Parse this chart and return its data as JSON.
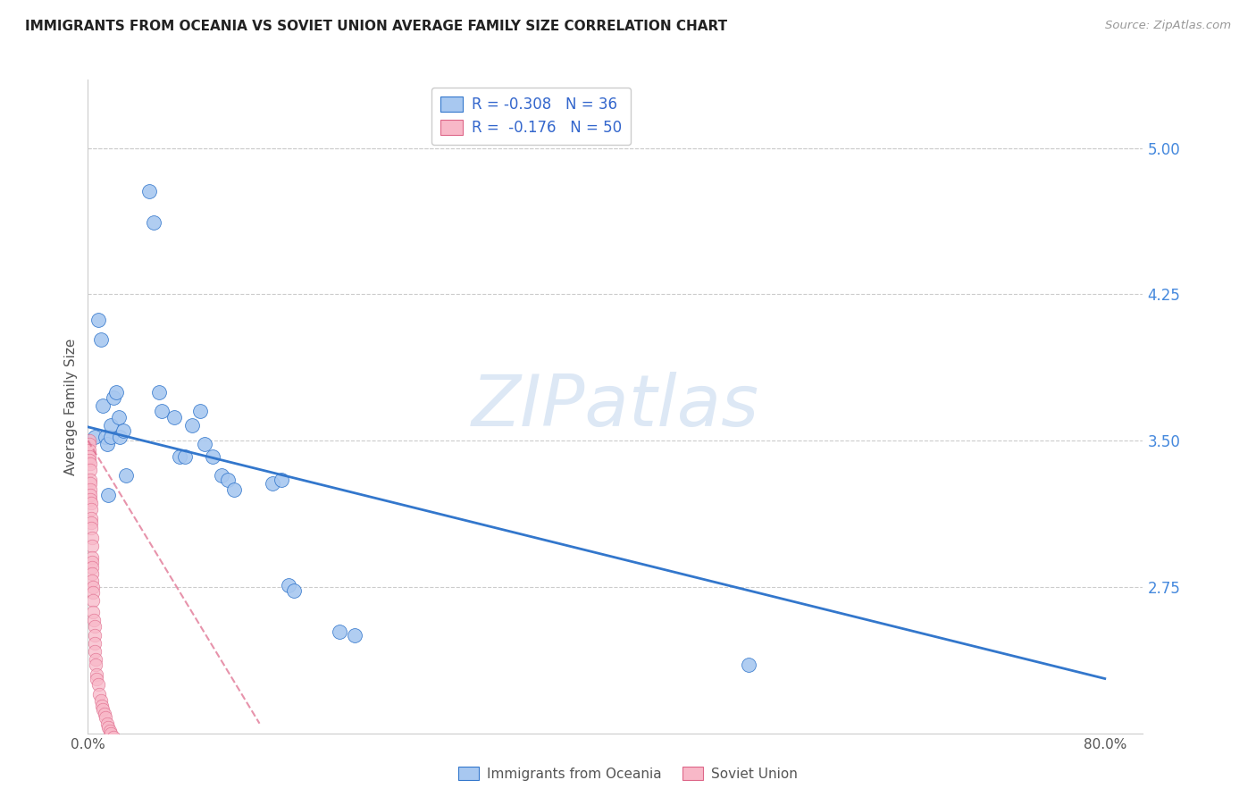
{
  "title": "IMMIGRANTS FROM OCEANIA VS SOVIET UNION AVERAGE FAMILY SIZE CORRELATION CHART",
  "source": "Source: ZipAtlas.com",
  "ylabel": "Average Family Size",
  "right_yticks": [
    2.75,
    3.5,
    4.25,
    5.0
  ],
  "ylim": [
    2.0,
    5.35
  ],
  "xlim": [
    0.0,
    0.83
  ],
  "xtick_positions": [
    0.0,
    0.1,
    0.2,
    0.3,
    0.4,
    0.5,
    0.6,
    0.7,
    0.8
  ],
  "xtick_labels": [
    "0.0%",
    "",
    "",
    "",
    "",
    "",
    "",
    "",
    "80.0%"
  ],
  "oceania_color": "#a8c8f0",
  "soviet_color": "#f8b8c8",
  "line_blue": "#3377cc",
  "line_pink": "#dd6688",
  "oceania_x": [
    0.005,
    0.008,
    0.01,
    0.012,
    0.014,
    0.015,
    0.016,
    0.018,
    0.018,
    0.02,
    0.022,
    0.024,
    0.025,
    0.028,
    0.03,
    0.048,
    0.052,
    0.056,
    0.058,
    0.068,
    0.072,
    0.076,
    0.082,
    0.088,
    0.092,
    0.098,
    0.105,
    0.11,
    0.115,
    0.145,
    0.152,
    0.158,
    0.162,
    0.198,
    0.21,
    0.52
  ],
  "oceania_y": [
    3.52,
    4.12,
    4.02,
    3.68,
    3.52,
    3.48,
    3.22,
    3.52,
    3.58,
    3.72,
    3.75,
    3.62,
    3.52,
    3.55,
    3.32,
    4.78,
    4.62,
    3.75,
    3.65,
    3.62,
    3.42,
    3.42,
    3.58,
    3.65,
    3.48,
    3.42,
    3.32,
    3.3,
    3.25,
    3.28,
    3.3,
    2.76,
    2.73,
    2.52,
    2.5,
    2.35
  ],
  "soviet_x": [
    0.0008,
    0.001,
    0.0012,
    0.0013,
    0.0014,
    0.0015,
    0.0016,
    0.0016,
    0.0018,
    0.002,
    0.002,
    0.002,
    0.0022,
    0.0023,
    0.0025,
    0.0025,
    0.0027,
    0.003,
    0.003,
    0.003,
    0.003,
    0.0032,
    0.0033,
    0.0035,
    0.0038,
    0.004,
    0.004,
    0.0042,
    0.0045,
    0.005,
    0.005,
    0.0052,
    0.0055,
    0.006,
    0.006,
    0.007,
    0.007,
    0.008,
    0.009,
    0.01,
    0.011,
    0.012,
    0.013,
    0.014,
    0.015,
    0.016,
    0.017,
    0.018,
    0.02,
    0.022
  ],
  "soviet_y": [
    3.5,
    3.48,
    3.45,
    3.42,
    3.4,
    3.38,
    3.35,
    3.3,
    3.28,
    3.25,
    3.22,
    3.2,
    3.18,
    3.15,
    3.1,
    3.08,
    3.05,
    3.0,
    2.96,
    2.9,
    2.88,
    2.85,
    2.82,
    2.78,
    2.75,
    2.72,
    2.68,
    2.62,
    2.58,
    2.55,
    2.5,
    2.46,
    2.42,
    2.38,
    2.35,
    2.3,
    2.28,
    2.25,
    2.2,
    2.17,
    2.14,
    2.12,
    2.1,
    2.08,
    2.05,
    2.03,
    2.01,
    2.0,
    1.98,
    1.95
  ],
  "blue_line_x": [
    0.0,
    0.8
  ],
  "blue_line_y": [
    3.57,
    2.28
  ],
  "pink_line_x": [
    0.0,
    0.135
  ],
  "pink_line_y": [
    3.5,
    2.05
  ],
  "watermark": "ZIPatlas",
  "watermark_color": "#dde8f5",
  "legend_labels": [
    "R = -0.308   N = 36",
    "R =  -0.176   N = 50"
  ],
  "bottom_legend_labels": [
    "Immigrants from Oceania",
    "Soviet Union"
  ]
}
